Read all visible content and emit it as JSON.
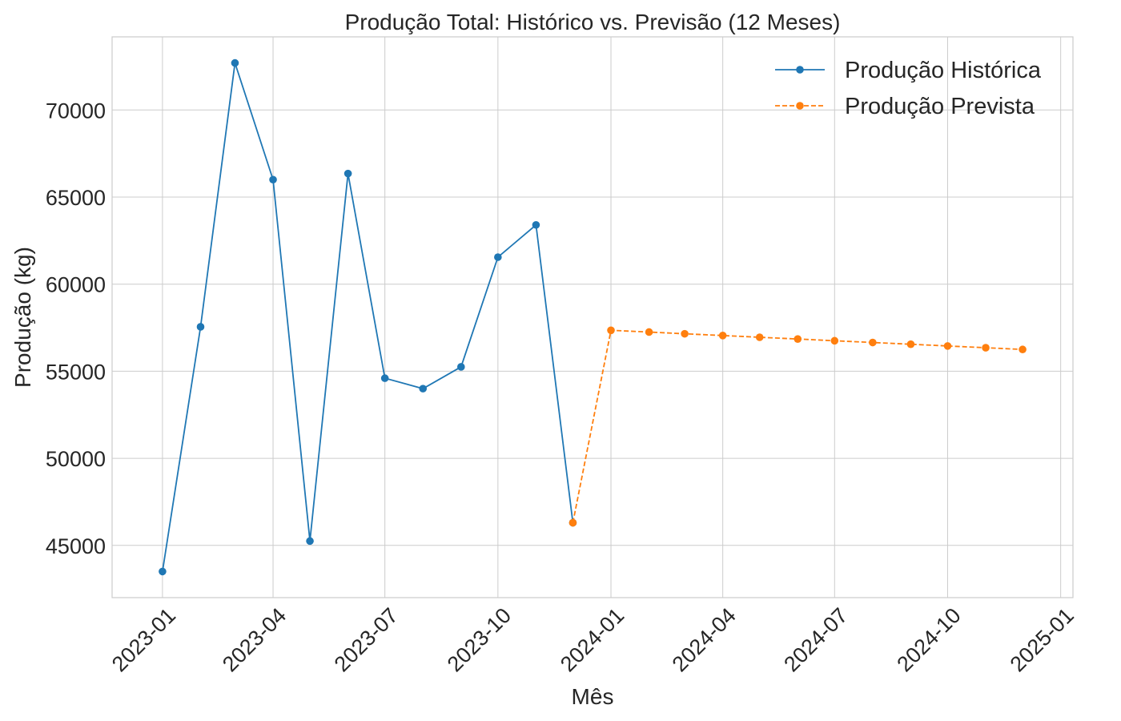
{
  "chart_data": {
    "type": "line",
    "title": "Produção Total: Histórico vs. Previsão (12 Meses)",
    "xlabel": "Mês",
    "ylabel": "Produção (kg)",
    "x_ticks": [
      "2023-01",
      "2023-04",
      "2023-07",
      "2023-10",
      "2024-01",
      "2024-04",
      "2024-07",
      "2024-10",
      "2025-01"
    ],
    "y_ticks": [
      45000,
      50000,
      55000,
      60000,
      65000,
      70000
    ],
    "ylim": [
      42000,
      74200
    ],
    "xlim": [
      "2022-11-21",
      "2025-01-11"
    ],
    "grid": true,
    "legend_position": "top-right",
    "series": [
      {
        "name": "Produção Histórica",
        "color": "#1f77b4",
        "line_style": "solid",
        "marker": "circle",
        "x": [
          "2023-01-01",
          "2023-02-01",
          "2023-03-01",
          "2023-04-01",
          "2023-05-01",
          "2023-06-01",
          "2023-07-01",
          "2023-08-01",
          "2023-09-01",
          "2023-10-01",
          "2023-11-01",
          "2023-12-01"
        ],
        "values": [
          43500,
          57550,
          72700,
          66000,
          45250,
          66350,
          54600,
          54000,
          55250,
          61550,
          63400,
          46300
        ]
      },
      {
        "name": "Produção Prevista",
        "color": "#ff7f0e",
        "line_style": "dashed",
        "marker": "circle",
        "x": [
          "2023-12-01",
          "2024-01-01",
          "2024-02-01",
          "2024-03-01",
          "2024-04-01",
          "2024-05-01",
          "2024-06-01",
          "2024-07-01",
          "2024-08-01",
          "2024-09-01",
          "2024-10-01",
          "2024-11-01",
          "2024-12-01"
        ],
        "values": [
          46300,
          57350,
          57250,
          57150,
          57050,
          56950,
          56850,
          56750,
          56650,
          56550,
          56450,
          56350,
          56250
        ]
      }
    ]
  }
}
